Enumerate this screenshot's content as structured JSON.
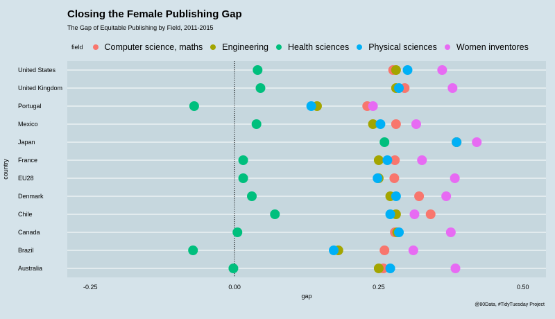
{
  "chart_data": {
    "type": "scatter",
    "title": "Closing the Female Publishing Gap",
    "subtitle": "The Gap of Equitable Publishing by Field, 2011-2015",
    "xlabel": "gap",
    "ylabel": "country",
    "caption": "@80Data, #TidyTuesday Project",
    "legend_title": "field",
    "legend_position": "top",
    "xlim": [
      -0.29,
      0.54
    ],
    "x_ticks": [
      -0.25,
      0,
      0.25,
      0.5
    ],
    "x_tick_labels": [
      "-0.25",
      "0.00",
      "0.25",
      "0.50"
    ],
    "reference_line": 0,
    "grid": true,
    "categories": [
      "United States",
      "United Kingdom",
      "Portugal",
      "Mexico",
      "Japan",
      "France",
      "EU28",
      "Denmark",
      "Chile",
      "Canada",
      "Brazil",
      "Australia"
    ],
    "series": [
      {
        "name": "Computer science, maths",
        "color": "#f8766d",
        "values": [
          0.275,
          0.295,
          0.23,
          0.28,
          0.385,
          0.278,
          0.277,
          0.32,
          0.34,
          0.278,
          0.26,
          0.258
        ]
      },
      {
        "name": "Engineering",
        "color": "#a3a500",
        "values": [
          0.28,
          0.28,
          0.143,
          0.24,
          0.385,
          0.25,
          0.25,
          0.27,
          0.28,
          0.282,
          0.18,
          0.25
        ]
      },
      {
        "name": "Health sciences",
        "color": "#00bf7d",
        "values": [
          0.04,
          0.045,
          -0.07,
          0.038,
          0.26,
          0.015,
          0.015,
          0.03,
          0.07,
          0.005,
          -0.072,
          -0.002
        ]
      },
      {
        "name": "Physical sciences",
        "color": "#00b0f6",
        "values": [
          0.3,
          0.285,
          0.133,
          0.253,
          0.385,
          0.265,
          0.248,
          0.28,
          0.27,
          0.285,
          0.172,
          0.27
        ]
      },
      {
        "name": "Women inventores",
        "color": "#e76bf3",
        "values": [
          0.36,
          0.378,
          0.24,
          0.315,
          0.42,
          0.325,
          0.382,
          0.367,
          0.312,
          0.375,
          0.31,
          0.383
        ]
      }
    ]
  }
}
